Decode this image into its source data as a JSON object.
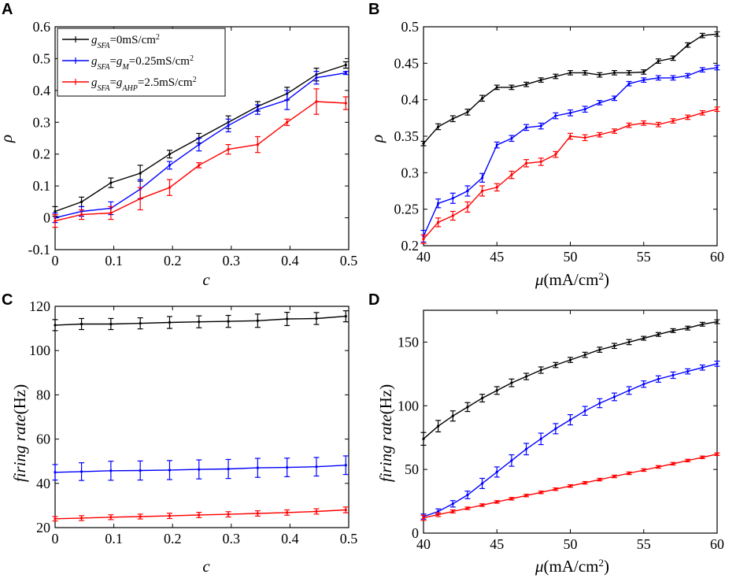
{
  "panels": [
    {
      "letter": "A",
      "type": "line",
      "xlabel": "c",
      "ylabel": "ρ",
      "xlim": [
        0,
        0.5
      ],
      "ylim": [
        -0.1,
        0.6
      ],
      "xticks": [
        0,
        0.1,
        0.2,
        0.3,
        0.4,
        0.5
      ],
      "yticks": [
        -0.1,
        0,
        0.1,
        0.2,
        0.3,
        0.4,
        0.5,
        0.6
      ],
      "xtick_labels": [
        "0",
        "0.1",
        "0.2",
        "0.3",
        "0.4",
        "0.5"
      ],
      "ytick_labels": [
        "-0.1",
        "0",
        "0.1",
        "0.2",
        "0.3",
        "0.4",
        "0.5",
        "0.6"
      ],
      "x": [
        0,
        0.045,
        0.095,
        0.145,
        0.195,
        0.245,
        0.295,
        0.345,
        0.395,
        0.445,
        0.495
      ],
      "series": [
        {
          "name": "black",
          "color": "#000000",
          "values": [
            0.02,
            0.05,
            0.11,
            0.14,
            0.2,
            0.25,
            0.3,
            0.35,
            0.39,
            0.45,
            0.48
          ],
          "err": [
            0.015,
            0.015,
            0.015,
            0.025,
            0.012,
            0.015,
            0.02,
            0.015,
            0.02,
            0.02,
            0.01
          ]
        },
        {
          "name": "blue",
          "color": "#0000ff",
          "values": [
            0.0,
            0.02,
            0.03,
            0.09,
            0.165,
            0.23,
            0.29,
            0.34,
            0.37,
            0.44,
            0.455
          ],
          "err": [
            0.015,
            0.015,
            0.02,
            0.03,
            0.012,
            0.02,
            0.02,
            0.015,
            0.03,
            0.02,
            0.005
          ]
        },
        {
          "name": "red",
          "color": "#ff0000",
          "values": [
            -0.01,
            0.01,
            0.015,
            0.06,
            0.095,
            0.165,
            0.215,
            0.23,
            0.3,
            0.365,
            0.36
          ],
          "err": [
            0.02,
            0.015,
            0.02,
            0.035,
            0.025,
            0.008,
            0.015,
            0.025,
            0.01,
            0.04,
            0.02
          ]
        }
      ],
      "legend": {
        "placement": "top-left",
        "entries": [
          {
            "color": "#000000",
            "parts": [
              [
                "g",
                "it"
              ],
              [
                "SFA",
                "sub"
              ],
              [
                "=0mS/cm",
                ""
              ],
              [
                "2",
                "sup"
              ]
            ]
          },
          {
            "color": "#0000ff",
            "parts": [
              [
                "g",
                "it"
              ],
              [
                "SFA",
                "sub"
              ],
              [
                "=",
                ""
              ],
              [
                "g",
                "it"
              ],
              [
                "M",
                "sub"
              ],
              [
                "=0.25mS/cm",
                ""
              ],
              [
                "2",
                "sup"
              ]
            ]
          },
          {
            "color": "#ff0000",
            "parts": [
              [
                "g",
                "it"
              ],
              [
                "SFA",
                "sub"
              ],
              [
                "=",
                ""
              ],
              [
                "g",
                "it"
              ],
              [
                "AHP",
                "sub"
              ],
              [
                "=2.5mS/cm",
                ""
              ],
              [
                "2",
                "sup"
              ]
            ]
          }
        ]
      }
    },
    {
      "letter": "B",
      "type": "line",
      "xlabel": "μ",
      "xlabel_suffix": "(mA/cm",
      "xlabel_sup": "2",
      "xlabel_end": ")",
      "ylabel": "ρ",
      "xlim": [
        40,
        60
      ],
      "ylim": [
        0.2,
        0.5
      ],
      "xticks": [
        40,
        45,
        50,
        55,
        60
      ],
      "yticks": [
        0.2,
        0.25,
        0.3,
        0.35,
        0.4,
        0.45,
        0.5
      ],
      "xtick_labels": [
        "40",
        "45",
        "50",
        "55",
        "60"
      ],
      "ytick_labels": [
        "0.2",
        "0.25",
        "0.3",
        "0.35",
        "0.4",
        "0.45",
        "0.5"
      ],
      "x": [
        40,
        41,
        42,
        43,
        44,
        45,
        46,
        47,
        48,
        49,
        50,
        51,
        52,
        53,
        54,
        55,
        56,
        57,
        58,
        59,
        60
      ],
      "series": [
        {
          "name": "black",
          "color": "#000000",
          "values": [
            0.34,
            0.363,
            0.374,
            0.383,
            0.402,
            0.417,
            0.417,
            0.421,
            0.427,
            0.432,
            0.437,
            0.437,
            0.434,
            0.437,
            0.437,
            0.438,
            0.453,
            0.457,
            0.475,
            0.488,
            0.49
          ],
          "err": [
            0.003,
            0.004,
            0.004,
            0.004,
            0.004,
            0.003,
            0.003,
            0.003,
            0.003,
            0.003,
            0.003,
            0.003,
            0.003,
            0.003,
            0.003,
            0.003,
            0.003,
            0.003,
            0.003,
            0.003,
            0.003
          ]
        },
        {
          "name": "blue",
          "color": "#0000ff",
          "values": [
            0.213,
            0.258,
            0.265,
            0.275,
            0.293,
            0.338,
            0.347,
            0.362,
            0.364,
            0.378,
            0.382,
            0.387,
            0.396,
            0.402,
            0.422,
            0.427,
            0.43,
            0.43,
            0.433,
            0.441,
            0.444
          ],
          "err": [
            0.008,
            0.006,
            0.007,
            0.007,
            0.006,
            0.004,
            0.004,
            0.004,
            0.004,
            0.004,
            0.004,
            0.004,
            0.003,
            0.003,
            0.003,
            0.003,
            0.003,
            0.003,
            0.003,
            0.003,
            0.003
          ]
        },
        {
          "name": "red",
          "color": "#ff0000",
          "values": [
            0.209,
            0.232,
            0.241,
            0.253,
            0.275,
            0.28,
            0.297,
            0.313,
            0.315,
            0.325,
            0.35,
            0.348,
            0.352,
            0.357,
            0.365,
            0.368,
            0.366,
            0.371,
            0.376,
            0.382,
            0.387
          ],
          "err": [
            0.006,
            0.006,
            0.006,
            0.007,
            0.007,
            0.005,
            0.005,
            0.005,
            0.005,
            0.004,
            0.004,
            0.004,
            0.003,
            0.003,
            0.003,
            0.003,
            0.003,
            0.003,
            0.003,
            0.003,
            0.003
          ]
        }
      ]
    },
    {
      "letter": "C",
      "type": "line",
      "xlabel": "c",
      "ylabel": "firing  rate",
      "ylabel_unit": "(Hz)",
      "xlim": [
        0,
        0.5
      ],
      "ylim": [
        20,
        120
      ],
      "xticks": [
        0,
        0.1,
        0.2,
        0.3,
        0.4,
        0.5
      ],
      "yticks": [
        20,
        40,
        60,
        80,
        100,
        120
      ],
      "xtick_labels": [
        "0",
        "0.1",
        "0.2",
        "0.3",
        "0.4",
        "0.5"
      ],
      "ytick_labels": [
        "20",
        "40",
        "60",
        "80",
        "100",
        "120"
      ],
      "x": [
        0,
        0.045,
        0.095,
        0.145,
        0.195,
        0.245,
        0.295,
        0.345,
        0.395,
        0.445,
        0.495
      ],
      "series": [
        {
          "name": "black",
          "color": "#000000",
          "values": [
            111.5,
            112,
            112,
            112.3,
            112.7,
            113,
            113.2,
            113.5,
            114.3,
            114.5,
            115.5
          ],
          "err": [
            2.5,
            2.5,
            2.5,
            2.5,
            2.7,
            2.7,
            2.7,
            3.0,
            3.0,
            2.7,
            2.5
          ]
        },
        {
          "name": "blue",
          "color": "#0000ff",
          "values": [
            45,
            45.3,
            45.7,
            45.8,
            46,
            46.3,
            46.5,
            47,
            47.2,
            47.5,
            48.2
          ],
          "err": [
            3.5,
            4,
            4.3,
            4.3,
            4.3,
            4.3,
            4.3,
            4.3,
            4.2,
            4.2,
            4.2
          ]
        },
        {
          "name": "red",
          "color": "#ff0000",
          "values": [
            24,
            24.3,
            24.7,
            25,
            25.3,
            25.7,
            26,
            26.4,
            26.8,
            27.3,
            28
          ],
          "err": [
            1,
            1.1,
            1.1,
            1.1,
            1.2,
            1.2,
            1.2,
            1.2,
            1.2,
            1.2,
            1.3
          ]
        }
      ]
    },
    {
      "letter": "D",
      "type": "line",
      "xlabel": "μ",
      "xlabel_suffix": "(mA/cm",
      "xlabel_sup": "2",
      "xlabel_end": ")",
      "ylabel": "firing  rate",
      "ylabel_unit": "(Hz)",
      "xlim": [
        40,
        60
      ],
      "ylim": [
        0,
        175
      ],
      "xticks": [
        40,
        45,
        50,
        55,
        60
      ],
      "yticks": [
        0,
        50,
        100,
        150
      ],
      "xtick_labels": [
        "40",
        "45",
        "50",
        "55",
        "60"
      ],
      "ytick_labels": [
        "0",
        "50",
        "100",
        "150"
      ],
      "x": [
        40,
        41,
        42,
        43,
        44,
        45,
        46,
        47,
        48,
        49,
        50,
        51,
        52,
        53,
        54,
        55,
        56,
        57,
        58,
        59,
        60
      ],
      "series": [
        {
          "name": "black",
          "color": "#000000",
          "values": [
            74,
            84,
            92,
            99,
            106,
            112,
            118,
            123,
            128,
            132,
            136,
            140,
            144,
            147,
            150,
            153,
            156,
            159,
            161,
            164,
            166
          ],
          "err": [
            5,
            4.5,
            4,
            3.5,
            3,
            3,
            3,
            2.5,
            2.5,
            2,
            2,
            2,
            2,
            2,
            2,
            1.5,
            1.5,
            1.5,
            1.5,
            1.5,
            1.5
          ]
        },
        {
          "name": "blue",
          "color": "#0000ff",
          "values": [
            13,
            17,
            23,
            30,
            39,
            48,
            57,
            66,
            74,
            82,
            89,
            96,
            102,
            107,
            112,
            117,
            121,
            124,
            127,
            130,
            133
          ],
          "err": [
            2,
            2,
            2.5,
            3,
            4,
            4,
            4.5,
            4.5,
            4.5,
            4,
            4,
            3.5,
            3.5,
            3,
            3,
            2.5,
            2.5,
            2.5,
            2,
            2,
            2
          ]
        },
        {
          "name": "red",
          "color": "#ff0000",
          "values": [
            12,
            14.5,
            17,
            19.5,
            22,
            24.5,
            27,
            29.5,
            32,
            34.5,
            37,
            39.5,
            42,
            44.5,
            47,
            49.5,
            52,
            54.5,
            57,
            59.5,
            62
          ],
          "err": [
            2,
            1.5,
            1.2,
            1,
            1,
            1,
            1,
            1,
            1,
            1,
            1,
            1,
            1,
            1,
            1,
            1,
            1,
            1,
            1,
            1,
            1
          ]
        }
      ]
    }
  ]
}
